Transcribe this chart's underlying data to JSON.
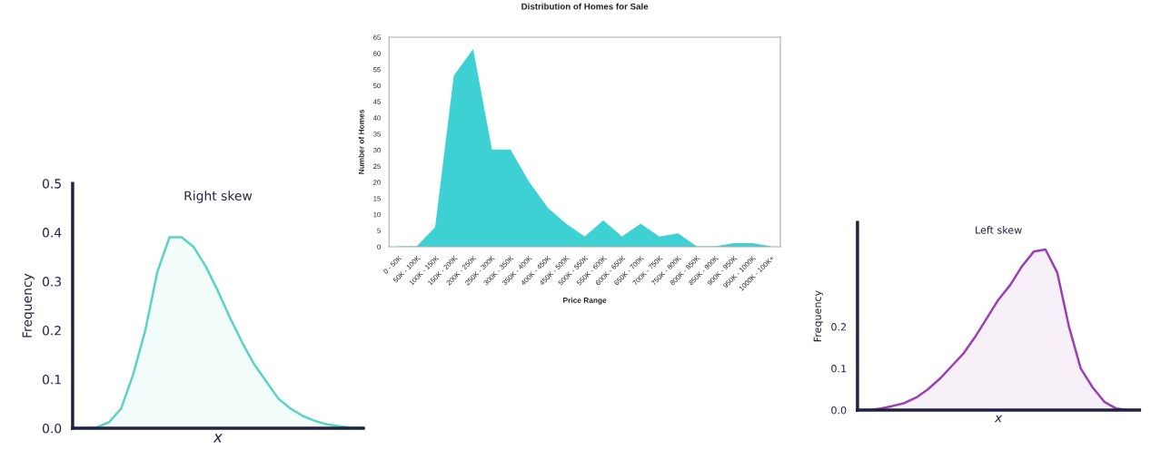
{
  "chart_data": [
    {
      "type": "area",
      "title": "Right skew",
      "xlabel": "x",
      "ylabel": "Frequency",
      "categories": [
        null,
        null,
        null,
        null,
        null,
        null,
        null,
        null,
        null,
        null,
        null,
        null,
        null,
        null,
        null,
        null,
        null,
        null,
        null,
        null,
        null,
        null,
        null,
        null,
        null
      ],
      "series": [
        {
          "color": "#5ad3c4",
          "values": [
            0,
            0,
            0.002,
            0.012,
            0.04,
            0.11,
            0.2,
            0.32,
            0.39,
            0.39,
            0.37,
            0.33,
            0.28,
            0.225,
            0.175,
            0.13,
            0.095,
            0.06,
            0.04,
            0.025,
            0.015,
            0.008,
            0.004,
            0.001,
            0
          ]
        }
      ],
      "ylim": [
        0.0,
        0.5
      ],
      "yticks": [
        {
          "value": 0,
          "label": "0.0"
        },
        0.1,
        0.2,
        0.3,
        0.4,
        0.5
      ],
      "grid": false,
      "legend": false
    },
    {
      "type": "area",
      "title": "Distribution of Homes for Sale",
      "xlabel": "Price Range",
      "ylabel": "Number of Homes",
      "categories": [
        "0 - 50K",
        "50K - 100K",
        "100K - 150K",
        "150K - 200K",
        "200K - 250K",
        "250K - 300K",
        "300K - 350K",
        "350K - 400K",
        "400K - 450K",
        "450K - 500K",
        "500K - 550K",
        "550K - 600K",
        "600K - 650K",
        "650K - 700K",
        "700K - 750K",
        "750K - 800K",
        "800K - 850K",
        "850K - 900K",
        "900K - 950K",
        "950K - 1000K",
        "1000K - 100K+"
      ],
      "series": [
        {
          "color": "#3dd1d4",
          "values": [
            0,
            0,
            6,
            53,
            61,
            30,
            30,
            20,
            12,
            7,
            3,
            8,
            3,
            7,
            3,
            4,
            0,
            0,
            1,
            1,
            0
          ]
        }
      ],
      "ylim": [
        0,
        65
      ],
      "yticks": [
        0,
        5,
        10,
        15,
        20,
        25,
        30,
        35,
        40,
        45,
        50,
        55,
        60,
        65
      ],
      "grid": false,
      "legend": false
    },
    {
      "type": "area",
      "title": "Left skew",
      "xlabel": "x",
      "ylabel": "Frequency",
      "categories": [
        null,
        null,
        null,
        null,
        null,
        null,
        null,
        null,
        null,
        null,
        null,
        null,
        null,
        null,
        null,
        null,
        null,
        null,
        null,
        null,
        null,
        null,
        null,
        null,
        null
      ],
      "series": [
        {
          "color": "#9b3fb5",
          "values": [
            0,
            0,
            0.004,
            0.01,
            0.017,
            0.03,
            0.05,
            0.075,
            0.105,
            0.135,
            0.175,
            0.22,
            0.265,
            0.3,
            0.345,
            0.38,
            0.385,
            0.33,
            0.2,
            0.1,
            0.055,
            0.02,
            0.004,
            0,
            0
          ]
        }
      ],
      "ylim": [
        0.0,
        0.45
      ],
      "yticks": [
        {
          "value": 0,
          "label": "0.0"
        },
        0.1,
        0.2
      ],
      "grid": false,
      "legend": false
    }
  ]
}
